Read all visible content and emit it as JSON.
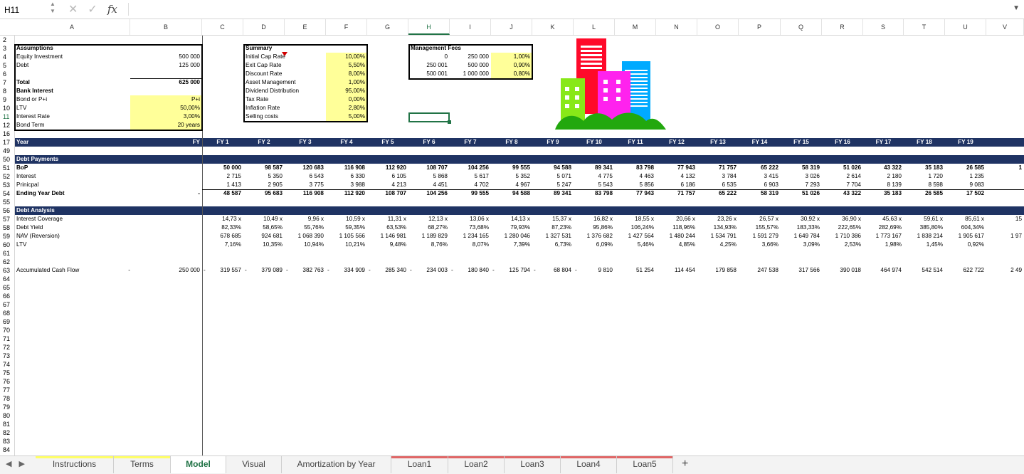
{
  "formula_bar": {
    "name_box": "H11",
    "cancel_icon": "✕",
    "enter_icon": "✓",
    "fx_label": "fx",
    "formula": ""
  },
  "columns": [
    "A",
    "B",
    "C",
    "D",
    "E",
    "F",
    "G",
    "H",
    "I",
    "J",
    "K",
    "L",
    "M",
    "N",
    "O",
    "P",
    "Q",
    "R",
    "S",
    "T",
    "U",
    "V"
  ],
  "selected_column": "H",
  "selected_row": "11",
  "assumptions": {
    "rows": [
      {
        "row": "3",
        "label": "Assumptions",
        "value": "",
        "bold": true,
        "yellow": false
      },
      {
        "row": "4",
        "label": "Equity Investment",
        "value": "500 000",
        "bold": false,
        "yellow": false
      },
      {
        "row": "5",
        "label": "Debt",
        "value": "125 000",
        "bold": false,
        "yellow": false
      },
      {
        "row": "6",
        "label": "",
        "value": "",
        "bold": false,
        "yellow": false
      },
      {
        "row": "7",
        "label": "Total",
        "value": "625 000",
        "bold": true,
        "yellow": false
      },
      {
        "row": "8",
        "label": "Bank Interest",
        "value": "",
        "bold": true,
        "yellow": false
      },
      {
        "row": "9",
        "label": "Bond or P+i",
        "value": "P+i",
        "bold": false,
        "yellow": true
      },
      {
        "row": "10",
        "label": "LTV",
        "value": "50,00%",
        "bold": false,
        "yellow": true
      },
      {
        "row": "11",
        "label": "Interest Rate",
        "value": "3,00%",
        "bold": false,
        "yellow": true
      },
      {
        "row": "12",
        "label": "Bond Term",
        "value": "20 years",
        "bold": false,
        "yellow": true
      }
    ]
  },
  "summary": {
    "title": "Summary",
    "rows": [
      {
        "label": "Initial Cap Rate",
        "value": "10,00%"
      },
      {
        "label": "Exit Cap Rate",
        "value": "5,50%"
      },
      {
        "label": "Discount Rate",
        "value": "8,00%"
      },
      {
        "label": "Asset Management",
        "value": "1,00%"
      },
      {
        "label": "Dividend Distribution",
        "value": "95,00%"
      },
      {
        "label": "Tax Rate",
        "value": "0,00%"
      },
      {
        "label": "Inflation Rate",
        "value": "2,80%"
      },
      {
        "label": "Selling costs",
        "value": "5,00%"
      }
    ]
  },
  "management_fees": {
    "title": "Management Fees",
    "rows": [
      {
        "from": "0",
        "to": "250 000",
        "rate": "1,00%"
      },
      {
        "from": "250 001",
        "to": "500 000",
        "rate": "0,90%"
      },
      {
        "from": "500 001",
        "to": "1 000 000",
        "rate": "0,80%"
      }
    ]
  },
  "year_header": {
    "label": "Year",
    "b": "FY",
    "years": [
      "FY 1",
      "FY 2",
      "FY 3",
      "FY 4",
      "FY 5",
      "FY 6",
      "FY 7",
      "FY 8",
      "FY 9",
      "FY 10",
      "FY 11",
      "FY 12",
      "FY 13",
      "FY 14",
      "FY 15",
      "FY 16",
      "FY 17",
      "FY 18",
      "FY 19"
    ]
  },
  "debt_payments": {
    "title": "Debt Payments",
    "rows": [
      {
        "row": "51",
        "label": "BoP",
        "bold": true,
        "b": "",
        "values": [
          "50 000",
          "98 587",
          "120 683",
          "116 908",
          "112 920",
          "108 707",
          "104 256",
          "99 555",
          "94 588",
          "89 341",
          "83 798",
          "77 943",
          "71 757",
          "65 222",
          "58 319",
          "51 026",
          "43 322",
          "35 183",
          "26 585"
        ],
        "v": "1"
      },
      {
        "row": "52",
        "label": "Interest",
        "bold": false,
        "b": "",
        "values": [
          "2 715",
          "5 350",
          "6 543",
          "6 330",
          "6 105",
          "5 868",
          "5 617",
          "5 352",
          "5 071",
          "4 775",
          "4 463",
          "4 132",
          "3 784",
          "3 415",
          "3 026",
          "2 614",
          "2 180",
          "1 720",
          "1 235"
        ],
        "v": ""
      },
      {
        "row": "53",
        "label": "Prinicpal",
        "bold": false,
        "b": "",
        "values": [
          "1 413",
          "2 905",
          "3 775",
          "3 988",
          "4 213",
          "4 451",
          "4 702",
          "4 967",
          "5 247",
          "5 543",
          "5 856",
          "6 186",
          "6 535",
          "6 903",
          "7 293",
          "7 704",
          "8 139",
          "8 598",
          "9 083"
        ],
        "v": ""
      },
      {
        "row": "54",
        "label": "Ending Year Debt",
        "bold": true,
        "b": "-",
        "values": [
          "48 587",
          "95 683",
          "116 908",
          "112 920",
          "108 707",
          "104 256",
          "99 555",
          "94 588",
          "89 341",
          "83 798",
          "77 943",
          "71 757",
          "65 222",
          "58 319",
          "51 026",
          "43 322",
          "35 183",
          "26 585",
          "17 502"
        ],
        "v": ""
      }
    ]
  },
  "debt_analysis": {
    "title": "Debt Analysis",
    "rows": [
      {
        "row": "57",
        "label": "Interest Coverage",
        "values": [
          "14,73 x",
          "10,49 x",
          "9,96 x",
          "10,59 x",
          "11,31 x",
          "12,13 x",
          "13,06 x",
          "14,13 x",
          "15,37 x",
          "16,82 x",
          "18,55 x",
          "20,66 x",
          "23,26 x",
          "26,57 x",
          "30,92 x",
          "36,90 x",
          "45,63 x",
          "59,61 x",
          "85,61 x"
        ],
        "v": "15"
      },
      {
        "row": "58",
        "label": "Debt Yield",
        "values": [
          "82,33%",
          "58,65%",
          "55,76%",
          "59,35%",
          "63,53%",
          "68,27%",
          "73,68%",
          "79,93%",
          "87,23%",
          "95,86%",
          "106,24%",
          "118,96%",
          "134,93%",
          "155,57%",
          "183,33%",
          "222,65%",
          "282,69%",
          "385,80%",
          "604,34%"
        ],
        "v": ""
      },
      {
        "row": "59",
        "label": "NAV (Reversion)",
        "values": [
          "678 685",
          "924 681",
          "1 068 390",
          "1 105 566",
          "1 146 981",
          "1 189 829",
          "1 234 165",
          "1 280 046",
          "1 327 531",
          "1 376 682",
          "1 427 564",
          "1 480 244",
          "1 534 791",
          "1 591 279",
          "1 649 784",
          "1 710 386",
          "1 773 167",
          "1 838 214",
          "1 905 617"
        ],
        "v": "1 97"
      },
      {
        "row": "60",
        "label": "LTV",
        "values": [
          "7,16%",
          "10,35%",
          "10,94%",
          "10,21%",
          "9,48%",
          "8,76%",
          "8,07%",
          "7,39%",
          "6,73%",
          "6,09%",
          "5,46%",
          "4,85%",
          "4,25%",
          "3,66%",
          "3,09%",
          "2,53%",
          "1,98%",
          "1,45%",
          "0,92%"
        ],
        "v": ""
      }
    ]
  },
  "cash_flow": {
    "row": "63",
    "label": "Accumulated Cash Flow",
    "a_dash": "-",
    "b": "250 000",
    "values": [
      "319 557",
      "379 089",
      "382 763",
      "334 909",
      "285 340",
      "234 003",
      "180 840",
      "125 794",
      "68 804",
      "9 810",
      "51 254",
      "114 454",
      "179 858",
      "247 538",
      "317 566",
      "390 018",
      "464 974",
      "542 514",
      "622 722"
    ],
    "negative_count": 10,
    "v": "2 49"
  },
  "row_numbers": [
    "2",
    "3",
    "4",
    "5",
    "6",
    "7",
    "8",
    "9",
    "10",
    "11",
    "12",
    "16",
    "17",
    "49",
    "50",
    "51",
    "52",
    "53",
    "54",
    "55",
    "56",
    "57",
    "58",
    "59",
    "60",
    "61",
    "62",
    "63",
    "64",
    "65",
    "66",
    "67",
    "68",
    "69",
    "70",
    "71",
    "72",
    "73",
    "74",
    "75",
    "76",
    "77",
    "78",
    "79",
    "80",
    "81",
    "82",
    "83",
    "84"
  ],
  "sheet_tabs": [
    {
      "label": "Instructions",
      "color": "#ffff66",
      "active": false
    },
    {
      "label": "Terms",
      "color": "#ffff66",
      "active": false
    },
    {
      "label": "Model",
      "color": "",
      "active": true
    },
    {
      "label": "Visual",
      "color": "",
      "active": false
    },
    {
      "label": "Amortization by Year",
      "color": "",
      "active": false
    },
    {
      "label": "Loan1",
      "color": "#e06666",
      "active": false
    },
    {
      "label": "Loan2",
      "color": "#e06666",
      "active": false
    },
    {
      "label": "Loan3",
      "color": "#e06666",
      "active": false
    },
    {
      "label": "Loan4",
      "color": "#e06666",
      "active": false
    },
    {
      "label": "Loan5",
      "color": "#e06666",
      "active": false
    }
  ],
  "add_sheet": "+",
  "colors": {
    "header_band": "#1f3363",
    "input_yellow": "#ffff99",
    "accent_green": "#217346"
  }
}
